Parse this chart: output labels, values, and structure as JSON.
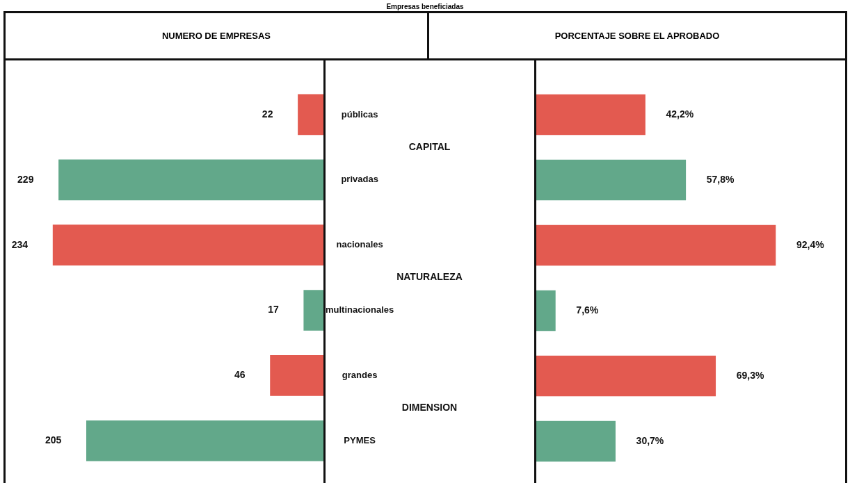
{
  "chart_data": [
    {
      "type": "bar",
      "orientation": "horizontal",
      "title": "NUMERO DE EMPRESAS",
      "annotations": [
        "Empresas beneficiadas",
        "CAPITAL",
        "NATURALEZA",
        "DIMENSION"
      ],
      "categories": [
        "públicas",
        "privadas",
        "nacionales",
        "multinacionales",
        "grandes",
        "PYMES"
      ],
      "values": [
        22,
        229,
        234,
        17,
        46,
        205
      ],
      "colors": [
        "#e35a50",
        "#62a88a",
        "#e35a50",
        "#62a88a",
        "#e35a50",
        "#62a88a"
      ],
      "xlim": [
        275,
        0
      ],
      "tick_labels": "y",
      "grid": false,
      "legend": false,
      "data_labels": true
    },
    {
      "type": "bar",
      "orientation": "horizontal",
      "title": "PORCENTAJE SOBRE EL APROBADO",
      "categories": [
        null,
        null,
        null,
        null,
        null,
        null
      ],
      "values": [
        42.2,
        57.8,
        92.4,
        7.6,
        69.3,
        30.7
      ],
      "value_labels": [
        "42,2%",
        "57,8%",
        "92,4%",
        "7,6%",
        "69,3%",
        "30,7%"
      ],
      "colors": [
        "#e35a50",
        "#62a88a",
        "#e35a50",
        "#62a88a",
        "#e35a50",
        "#62a88a"
      ],
      "xlim": [
        0,
        120
      ],
      "tick_labels": false,
      "grid": false,
      "legend": false
    }
  ]
}
